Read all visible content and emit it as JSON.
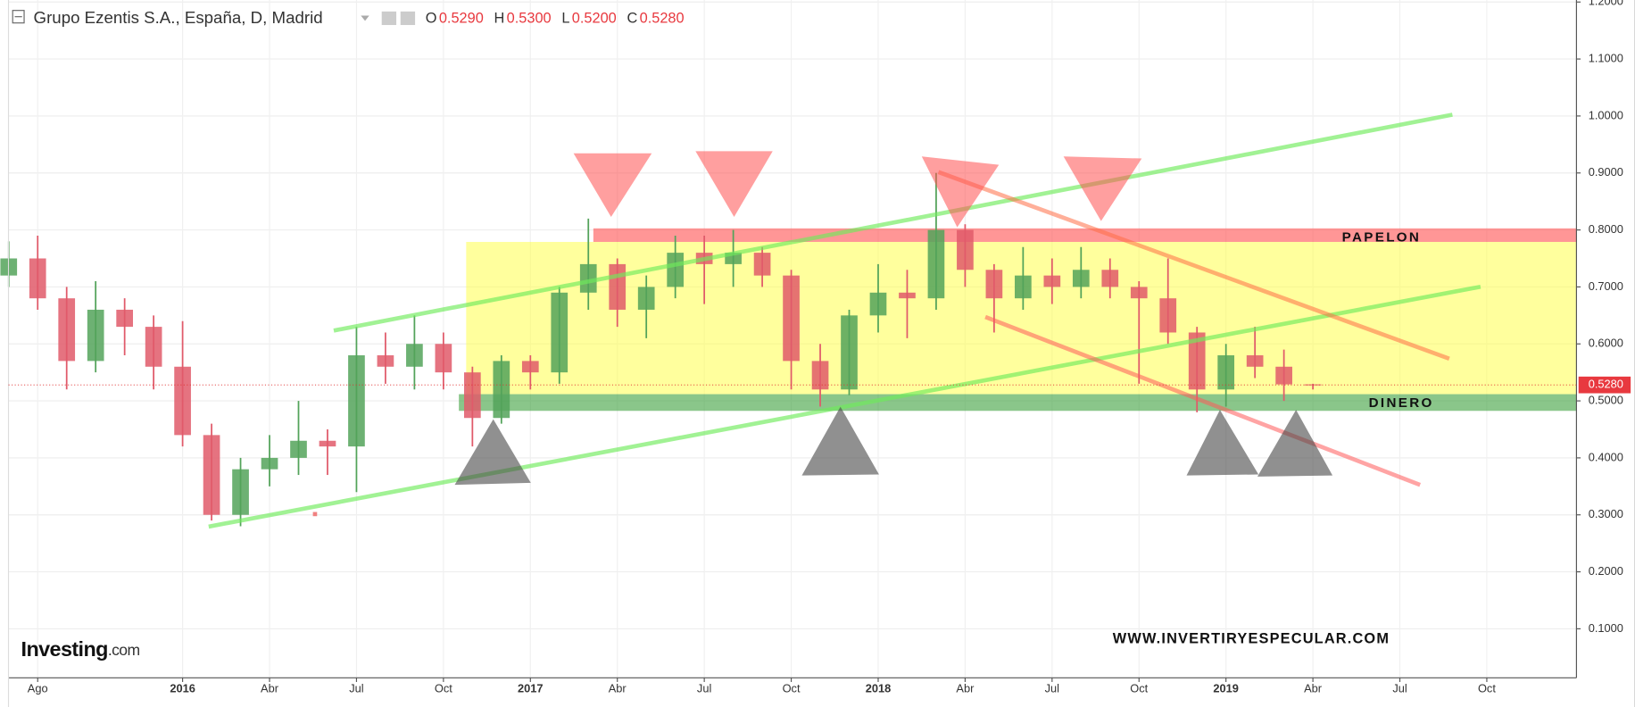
{
  "chart_data": {
    "type": "candlestick",
    "title": "Grupo Ezentis S.A., España, D, Madrid",
    "header_fields": [
      {
        "label": "O",
        "value": "0.5290"
      },
      {
        "label": "H",
        "value": "0.5300"
      },
      {
        "label": "L",
        "value": "0.5200"
      },
      {
        "label": "C",
        "value": "0.5280"
      }
    ],
    "categories": [
      null,
      "Ago",
      null,
      null,
      null,
      null,
      "2016",
      null,
      null,
      "Abr",
      null,
      null,
      "Jul",
      null,
      null,
      "Oct",
      null,
      null,
      "2017",
      null,
      null,
      "Abr",
      null,
      null,
      "Jul",
      null,
      null,
      "Oct",
      null,
      null,
      "2018",
      null,
      null,
      "Abr",
      null,
      null,
      "Jul",
      null,
      null,
      "Oct",
      null,
      null,
      "2019",
      null,
      null,
      "Abr",
      null,
      null,
      "Jul",
      null,
      null,
      "Oct",
      null,
      null
    ],
    "open": [
      0.72,
      0.75,
      0.68,
      0.57,
      0.66,
      0.63,
      0.56,
      0.44,
      0.3,
      0.38,
      0.4,
      0.43,
      0.42,
      0.58,
      0.56,
      0.6,
      0.55,
      0.47,
      0.57,
      0.55,
      0.69,
      0.74,
      0.66,
      0.7,
      0.76,
      0.74,
      0.76,
      0.72,
      0.57,
      0.52,
      0.65,
      0.69,
      0.68,
      0.8,
      0.73,
      0.68,
      0.72,
      0.7,
      0.73,
      0.7,
      0.68,
      0.62,
      0.52,
      0.58,
      0.56,
      0.529,
      null,
      null,
      null,
      null,
      null,
      null,
      null,
      null
    ],
    "high": [
      0.78,
      0.79,
      0.7,
      0.71,
      0.68,
      0.65,
      0.64,
      0.46,
      0.4,
      0.44,
      0.5,
      0.45,
      0.63,
      0.62,
      0.65,
      0.62,
      0.56,
      0.58,
      0.58,
      0.7,
      0.82,
      0.75,
      0.72,
      0.79,
      0.79,
      0.8,
      0.77,
      0.73,
      0.6,
      0.66,
      0.74,
      0.73,
      0.9,
      0.81,
      0.74,
      0.77,
      0.75,
      0.77,
      0.75,
      0.71,
      0.75,
      0.63,
      0.6,
      0.63,
      0.59,
      0.53,
      null,
      null,
      null,
      null,
      null,
      null,
      null,
      null
    ],
    "low": [
      0.7,
      0.66,
      0.52,
      0.55,
      0.58,
      0.52,
      0.42,
      0.29,
      0.28,
      0.35,
      0.37,
      0.37,
      0.34,
      0.53,
      0.52,
      0.52,
      0.42,
      0.46,
      0.52,
      0.53,
      0.66,
      0.63,
      0.61,
      0.68,
      0.67,
      0.7,
      0.7,
      0.52,
      0.49,
      0.51,
      0.62,
      0.61,
      0.66,
      0.7,
      0.62,
      0.66,
      0.67,
      0.68,
      0.68,
      0.53,
      0.6,
      0.48,
      0.49,
      0.54,
      0.5,
      0.52,
      null,
      null,
      null,
      null,
      null,
      null,
      null,
      null
    ],
    "close": [
      0.75,
      0.68,
      0.57,
      0.66,
      0.63,
      0.56,
      0.44,
      0.3,
      0.38,
      0.4,
      0.43,
      0.42,
      0.58,
      0.56,
      0.6,
      0.55,
      0.47,
      0.57,
      0.55,
      0.69,
      0.74,
      0.66,
      0.7,
      0.76,
      0.74,
      0.76,
      0.72,
      0.57,
      0.52,
      0.65,
      0.69,
      0.68,
      0.8,
      0.73,
      0.68,
      0.72,
      0.7,
      0.73,
      0.7,
      0.68,
      0.62,
      0.52,
      0.58,
      0.56,
      0.529,
      0.528,
      null,
      null,
      null,
      null,
      null,
      null,
      null,
      null
    ],
    "up_color": "#53a35a",
    "down_color": "#e05a6a",
    "ylim": [
      0.014,
      1.203
    ],
    "yticks": [
      {
        "value": 0.1,
        "label": "0.1000"
      },
      {
        "value": 0.2,
        "label": "0.2000"
      },
      {
        "value": 0.3,
        "label": "0.3000"
      },
      {
        "value": 0.4,
        "label": "0.4000"
      },
      {
        "value": 0.5,
        "label": "0.5000"
      },
      {
        "value": 0.6,
        "label": "0.6000"
      },
      {
        "value": 0.7,
        "label": "0.7000"
      },
      {
        "value": 0.8,
        "label": "0.8000"
      },
      {
        "value": 0.9,
        "label": "0.9000"
      },
      {
        "value": 1.0,
        "label": "1.0000"
      },
      {
        "value": 1.1,
        "label": "1.1000"
      },
      {
        "value": 1.2,
        "label": "1.2000"
      }
    ],
    "grid": true,
    "last_price": 0.528,
    "last_price_label": "0.5280",
    "annotations": {
      "resistance": "PAPELON",
      "support": "DINERO",
      "website": "WWW.INVERTIRYESPECULAR.COM"
    },
    "logo": {
      "brand": "Investing",
      "suffix": ".com"
    }
  }
}
